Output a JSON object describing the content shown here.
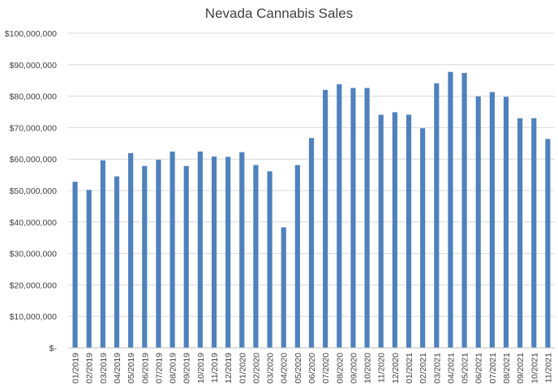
{
  "chart_data": {
    "type": "bar",
    "title": "Nevada Cannabis Sales",
    "xlabel": "",
    "ylabel": "",
    "ylim": [
      0,
      100000000
    ],
    "y_ticks": [
      {
        "value": 0,
        "label": "$-"
      },
      {
        "value": 10000000,
        "label": "$10,000,000"
      },
      {
        "value": 20000000,
        "label": "$20,000,000"
      },
      {
        "value": 30000000,
        "label": "$30,000,000"
      },
      {
        "value": 40000000,
        "label": "$40,000,000"
      },
      {
        "value": 50000000,
        "label": "$50,000,000"
      },
      {
        "value": 60000000,
        "label": "$60,000,000"
      },
      {
        "value": 70000000,
        "label": "$70,000,000"
      },
      {
        "value": 80000000,
        "label": "$80,000,000"
      },
      {
        "value": 90000000,
        "label": "$90,000,000"
      },
      {
        "value": 100000000,
        "label": "$100,000,000"
      }
    ],
    "grid": true,
    "legend": "none",
    "bar_color": "#4f81bd",
    "categories": [
      "01/2019",
      "02/2019",
      "03/2019",
      "04/2019",
      "05/2019",
      "06/2019",
      "07/2019",
      "08/2019",
      "09/2019",
      "10/2019",
      "11/2019",
      "12/2019",
      "01/2020",
      "02/2020",
      "03/2020",
      "04/2020",
      "05/2020",
      "06/2020",
      "07/2020",
      "08/2020",
      "09/2020",
      "10/2020",
      "11/2020",
      "12/2020",
      "01/2021",
      "02/2021",
      "03/2021",
      "04/2021",
      "05/2021",
      "06/2021",
      "07/2021",
      "08/2021",
      "09/2021",
      "10/2021",
      "11/2021"
    ],
    "values": [
      52800000,
      50200000,
      59600000,
      54500000,
      61900000,
      57800000,
      59800000,
      62400000,
      57800000,
      62400000,
      60800000,
      60700000,
      62200000,
      58100000,
      56100000,
      38300000,
      58100000,
      66700000,
      82000000,
      83800000,
      82600000,
      82600000,
      74100000,
      74900000,
      74100000,
      69800000,
      84100000,
      87700000,
      87400000,
      79900000,
      81300000,
      79800000,
      73000000,
      73000000,
      66400000
    ]
  }
}
